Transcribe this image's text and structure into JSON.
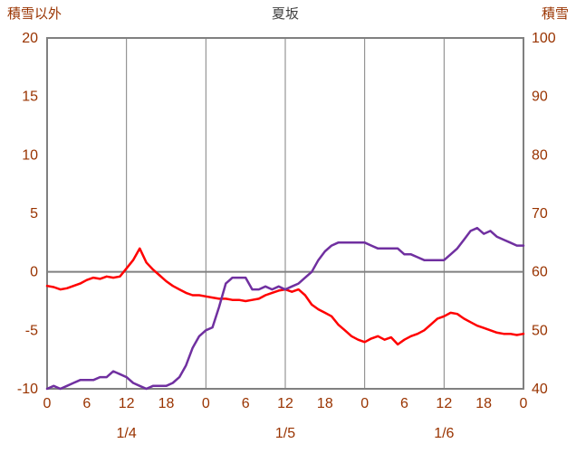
{
  "chart_data": {
    "type": "line",
    "title": "夏坂",
    "left_axis": {
      "label": "積雪以外",
      "min": -10,
      "max": 20,
      "ticks": [
        20,
        15,
        10,
        5,
        0,
        -5,
        -10
      ]
    },
    "right_axis": {
      "label": "積雪",
      "min": 40,
      "max": 100,
      "ticks": [
        100,
        90,
        80,
        70,
        60,
        50,
        40
      ]
    },
    "x_axis": {
      "hours_total": 72,
      "tick_interval": 6,
      "tick_labels": [
        "0",
        "6",
        "12",
        "18",
        "0",
        "6",
        "12",
        "18",
        "0",
        "6",
        "12",
        "18",
        "0"
      ],
      "day_labels": [
        "1/4",
        "1/5",
        "1/6"
      ],
      "day_label_center_hours": [
        12,
        36,
        60
      ],
      "gridline_hours": [
        12,
        24,
        36,
        48,
        60
      ],
      "zero_gridline_left_value": 0
    },
    "series": [
      {
        "id": "red-line",
        "color": "#FF0000",
        "axis": "left",
        "values": [
          -1.2,
          -1.3,
          -1.5,
          -1.4,
          -1.2,
          -1.0,
          -0.7,
          -0.5,
          -0.6,
          -0.4,
          -0.5,
          -0.4,
          0.3,
          1.0,
          2.0,
          0.8,
          0.2,
          -0.3,
          -0.8,
          -1.2,
          -1.5,
          -1.8,
          -2.0,
          -2.0,
          -2.1,
          -2.2,
          -2.3,
          -2.3,
          -2.4,
          -2.4,
          -2.5,
          -2.4,
          -2.3,
          -2.0,
          -1.8,
          -1.6,
          -1.5,
          -1.7,
          -1.5,
          -2.0,
          -2.8,
          -3.2,
          -3.5,
          -3.8,
          -4.5,
          -5.0,
          -5.5,
          -5.8,
          -6.0,
          -5.7,
          -5.5,
          -5.8,
          -5.6,
          -6.2,
          -5.8,
          -5.5,
          -5.3,
          -5.0,
          -4.5,
          -4.0,
          -3.8,
          -3.5,
          -3.6,
          -4.0,
          -4.3,
          -4.6,
          -4.8,
          -5.0,
          -5.2,
          -5.3,
          -5.3,
          -5.4,
          -5.3
        ]
      },
      {
        "id": "purple-line",
        "color": "#7030A0",
        "axis": "right",
        "values": [
          40,
          40.5,
          40,
          40.5,
          41,
          41.5,
          41.5,
          41.5,
          42,
          42,
          43,
          42.5,
          42,
          41,
          40.5,
          40,
          40.5,
          40.5,
          40.5,
          41,
          42,
          44,
          47,
          49,
          50,
          50.5,
          54,
          58,
          59,
          59,
          59,
          57,
          57,
          57.5,
          57,
          57.5,
          57,
          57.5,
          58,
          59,
          60,
          62,
          63.5,
          64.5,
          65,
          65,
          65,
          65,
          65,
          64.5,
          64,
          64,
          64,
          64,
          63,
          63,
          62.5,
          62,
          62,
          62,
          62,
          63,
          64,
          65.5,
          67,
          67.5,
          66.5,
          67,
          66,
          65.5,
          65,
          64.5,
          64.5
        ]
      }
    ],
    "style": {
      "axis_text_color": "#993300",
      "title_color": "#404040",
      "grid_color": "#808080",
      "border_color": "#808080",
      "background": "#FFFFFF"
    },
    "layout_hints": {
      "grid": "vertical lines every 12 hours plus horizontal line at left-axis 0",
      "legend": "none"
    }
  }
}
